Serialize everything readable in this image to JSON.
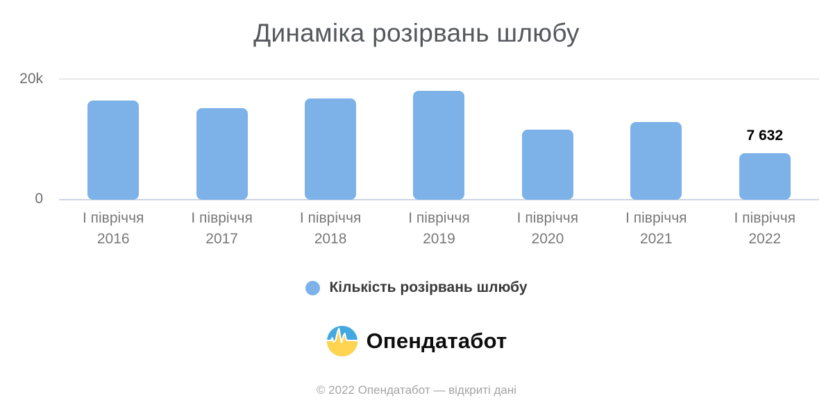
{
  "title": "Динаміка розірвань шлюбу",
  "chart_data": {
    "type": "bar",
    "title": "Динаміка розірвань шлюбу",
    "categories": [
      {
        "label": "І півріччя",
        "year": "2016"
      },
      {
        "label": "І півріччя",
        "year": "2017"
      },
      {
        "label": "І півріччя",
        "year": "2018"
      },
      {
        "label": "І півріччя",
        "year": "2019"
      },
      {
        "label": "І півріччя",
        "year": "2020"
      },
      {
        "label": "І півріччя",
        "year": "2021"
      },
      {
        "label": "І півріччя",
        "year": "2022"
      }
    ],
    "values": [
      16300,
      15100,
      16700,
      17900,
      11500,
      12800,
      7632
    ],
    "ylim": [
      0,
      20000
    ],
    "yticks": [
      {
        "value": 0,
        "label": "0"
      },
      {
        "value": 20000,
        "label": "20k"
      }
    ],
    "bar_color": "#7CB2E8",
    "grid": {
      "top_line": true,
      "baseline": true,
      "vertical": false
    },
    "legend": {
      "label": "Кількість розірвань шлюбу",
      "marker_color": "#7CB2E8",
      "position": "bottom"
    },
    "annotations": [
      {
        "category_index": 6,
        "text": "7 632"
      }
    ]
  },
  "branding": {
    "logo_text": "Опендатабот",
    "logo_icon": "opendatabot-pulse-icon",
    "logo_colors": {
      "blue": "#41A8E1",
      "yellow": "#FFD44F",
      "pulse": "#ffffff"
    }
  },
  "footer": {
    "copyright": "© 2022 Опендатабот — відкриті дані"
  }
}
